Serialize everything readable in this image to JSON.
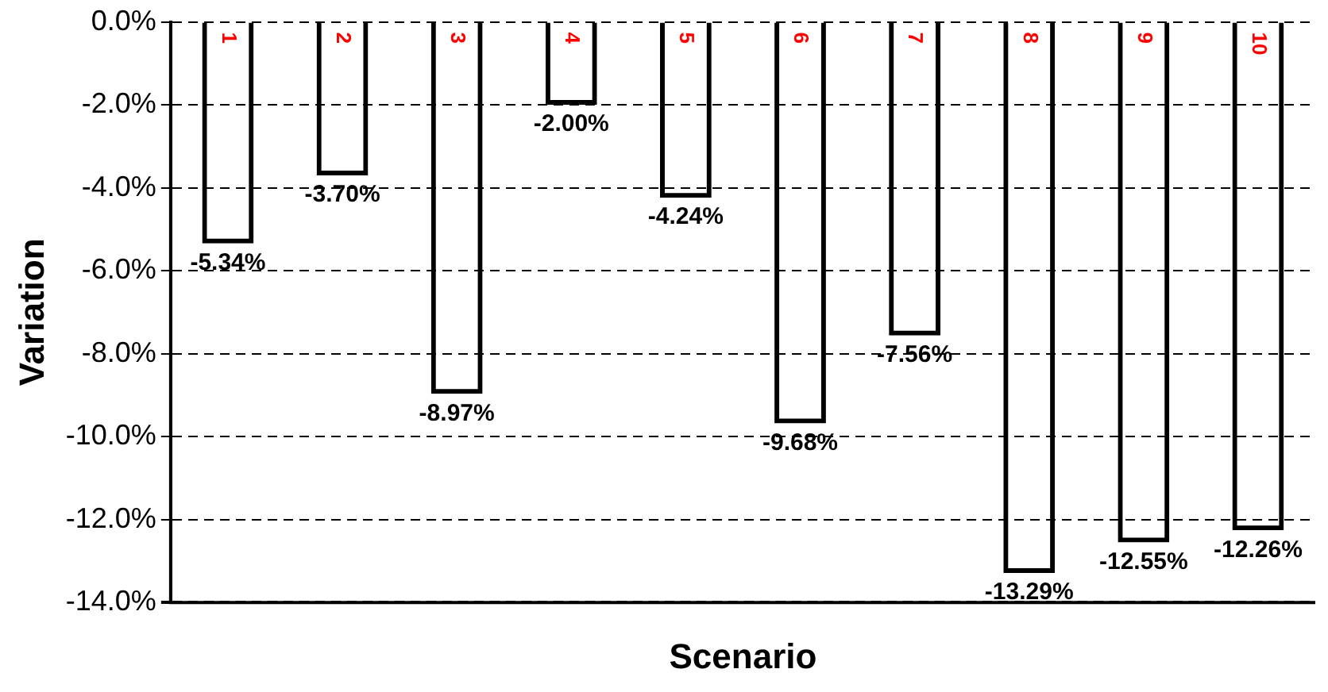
{
  "chart_data": {
    "type": "bar",
    "xlabel": "Scenario",
    "ylabel": "Variation",
    "categories": [
      "1",
      "2",
      "3",
      "4",
      "5",
      "6",
      "7",
      "8",
      "9",
      "10"
    ],
    "values": [
      -5.34,
      -3.7,
      -8.97,
      -2.0,
      -4.24,
      -9.68,
      -7.56,
      -13.29,
      -12.55,
      -12.26
    ],
    "value_labels": [
      "-5.34%",
      "-3.70%",
      "-8.97%",
      "-2.00%",
      "-4.24%",
      "-9.68%",
      "-7.56%",
      "-13.29%",
      "-12.55%",
      "-12.26%"
    ],
    "color": "#000000",
    "ylim": [
      -14,
      0
    ],
    "yticks": [
      {
        "value": 0,
        "label": "0.0%"
      },
      {
        "value": -2,
        "label": "-2.0%"
      },
      {
        "value": -4,
        "label": "-4.0%"
      },
      {
        "value": -6,
        "label": "-6.0%"
      },
      {
        "value": -8,
        "label": "-8.0%"
      },
      {
        "value": -10,
        "label": "-10.0%"
      },
      {
        "value": -12,
        "label": "-12.0%"
      },
      {
        "value": -14,
        "label": "-14.0%"
      }
    ],
    "grid": "y",
    "legend": false,
    "tick_labels": "y"
  }
}
